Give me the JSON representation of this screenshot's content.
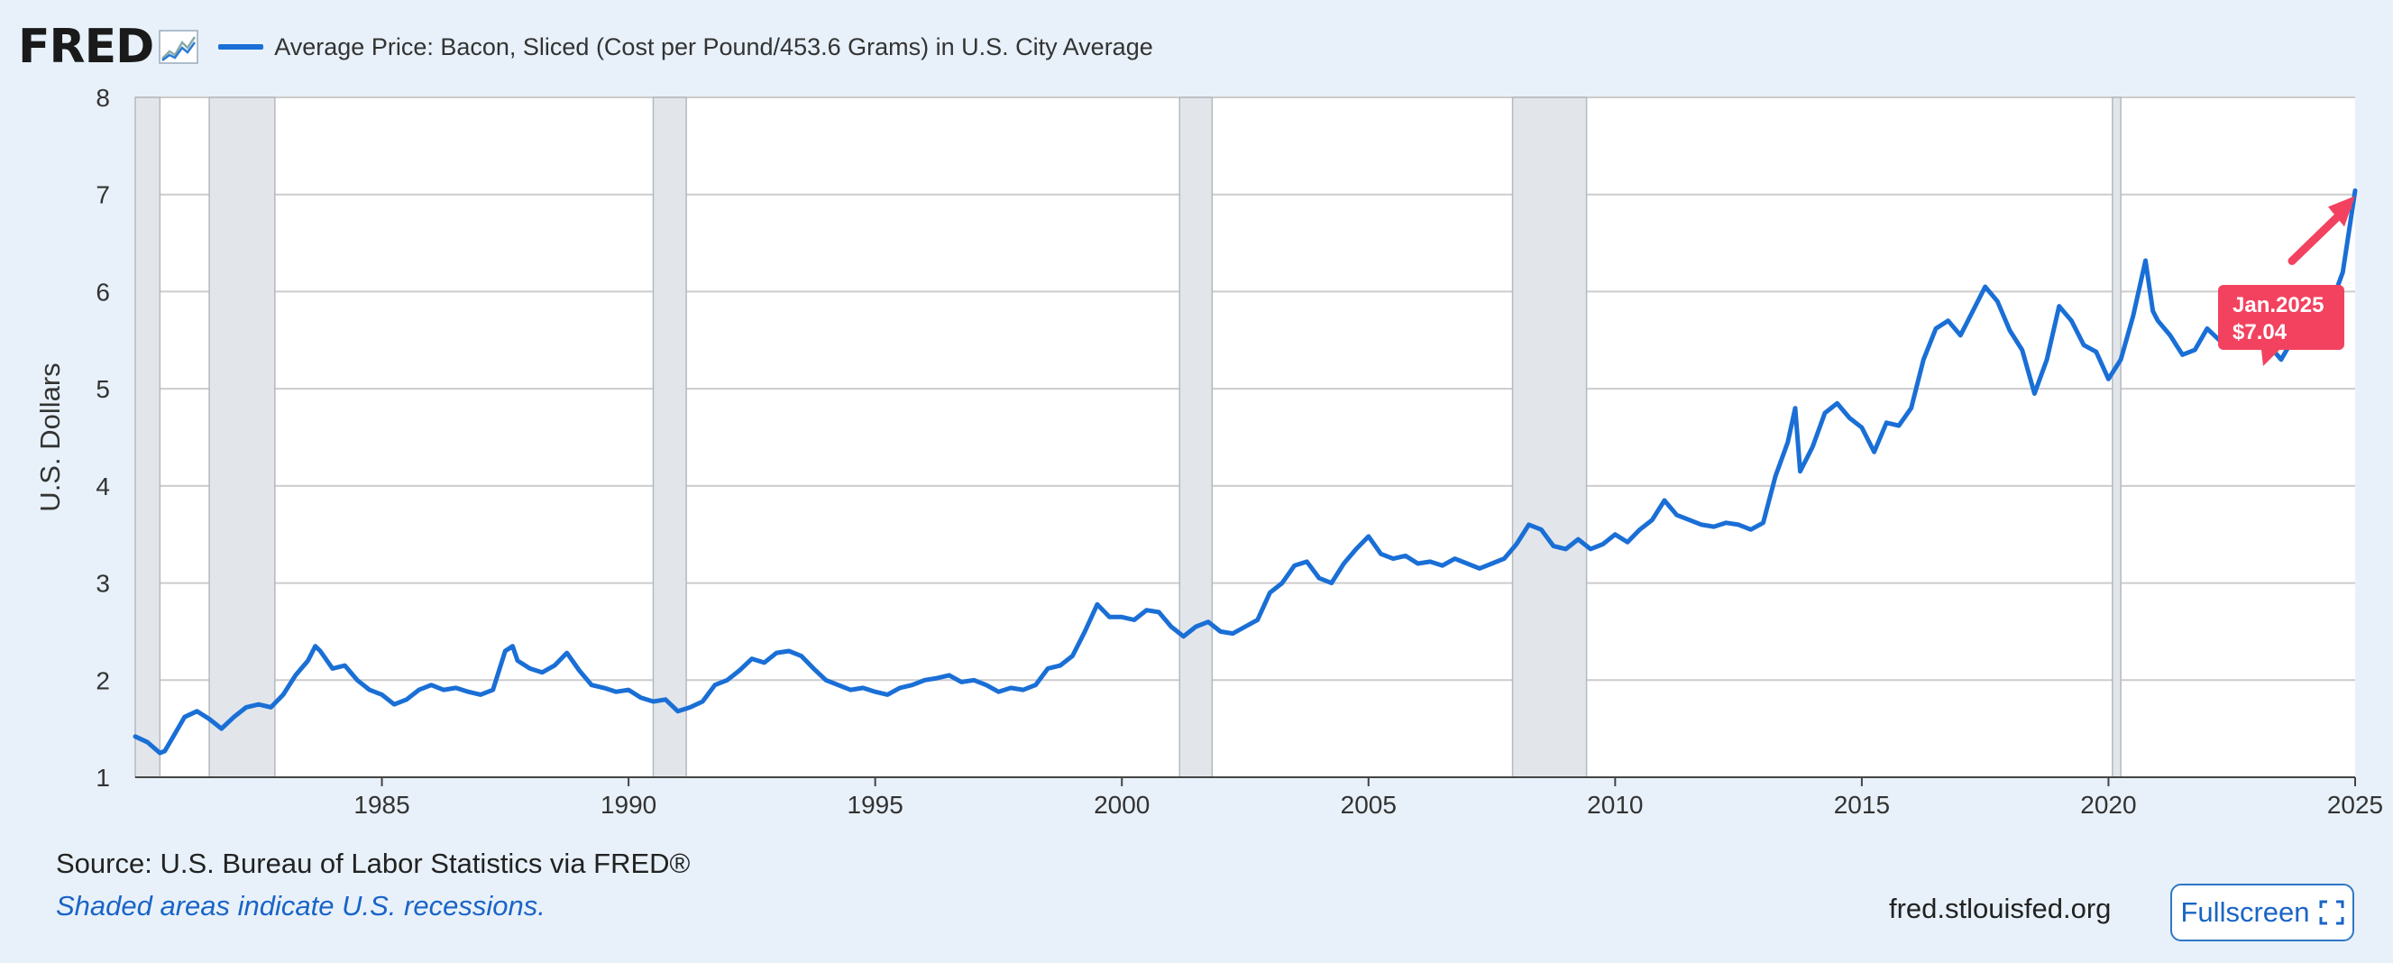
{
  "header": {
    "logo_text": "FRED",
    "legend_label": "Average Price: Bacon, Sliced (Cost per Pound/453.6 Grams) in U.S. City Average"
  },
  "footer": {
    "source": "Source: U.S. Bureau of Labor Statistics via FRED®",
    "note": "Shaded areas indicate U.S. recessions.",
    "url": "fred.stlouisfed.org",
    "fullscreen_label": "Fullscreen"
  },
  "icons": {
    "logo": "trend-chart-icon",
    "fullscreen": "expand-icon"
  },
  "colors": {
    "series": "#1a6fd6",
    "recession": "#e2e6ea",
    "tooltip": "#f2425f",
    "grid": "#cccccc",
    "background": "#e8f1fa"
  },
  "chart_data": {
    "type": "line",
    "ylabel": "U.S. Dollars",
    "xlabel": "",
    "ylim": [
      1,
      8
    ],
    "xlim": [
      1980.0,
      2025.0
    ],
    "y_ticks": [
      1,
      2,
      3,
      4,
      5,
      6,
      7,
      8
    ],
    "x_ticks": [
      1985,
      1990,
      1995,
      2000,
      2005,
      2010,
      2015,
      2020,
      2025
    ],
    "grid": true,
    "recessions": [
      [
        1980.0,
        1980.5
      ],
      [
        1981.5,
        1982.83
      ],
      [
        1990.5,
        1991.17
      ],
      [
        2001.17,
        2001.83
      ],
      [
        2007.92,
        2009.42
      ],
      [
        2020.08,
        2020.25
      ]
    ],
    "tooltip": {
      "date": "Jan.2025",
      "value": "$7.04"
    },
    "series": [
      {
        "name": "Average Price: Bacon, Sliced (Cost per Pound/453.6 Grams) in U.S. City Average",
        "points": [
          [
            1980.0,
            1.42
          ],
          [
            1980.25,
            1.36
          ],
          [
            1980.5,
            1.25
          ],
          [
            1980.6,
            1.27
          ],
          [
            1980.75,
            1.4
          ],
          [
            1981.0,
            1.62
          ],
          [
            1981.25,
            1.68
          ],
          [
            1981.5,
            1.6
          ],
          [
            1981.75,
            1.5
          ],
          [
            1982.0,
            1.62
          ],
          [
            1982.25,
            1.72
          ],
          [
            1982.5,
            1.75
          ],
          [
            1982.75,
            1.72
          ],
          [
            1983.0,
            1.85
          ],
          [
            1983.25,
            2.05
          ],
          [
            1983.5,
            2.2
          ],
          [
            1983.65,
            2.35
          ],
          [
            1983.75,
            2.3
          ],
          [
            1984.0,
            2.12
          ],
          [
            1984.25,
            2.15
          ],
          [
            1984.5,
            2.0
          ],
          [
            1984.75,
            1.9
          ],
          [
            1985.0,
            1.85
          ],
          [
            1985.25,
            1.75
          ],
          [
            1985.5,
            1.8
          ],
          [
            1985.75,
            1.9
          ],
          [
            1986.0,
            1.95
          ],
          [
            1986.25,
            1.9
          ],
          [
            1986.5,
            1.92
          ],
          [
            1986.75,
            1.88
          ],
          [
            1987.0,
            1.85
          ],
          [
            1987.25,
            1.9
          ],
          [
            1987.5,
            2.3
          ],
          [
            1987.65,
            2.35
          ],
          [
            1987.75,
            2.2
          ],
          [
            1988.0,
            2.12
          ],
          [
            1988.25,
            2.08
          ],
          [
            1988.5,
            2.15
          ],
          [
            1988.75,
            2.28
          ],
          [
            1989.0,
            2.1
          ],
          [
            1989.25,
            1.95
          ],
          [
            1989.5,
            1.92
          ],
          [
            1989.75,
            1.88
          ],
          [
            1990.0,
            1.9
          ],
          [
            1990.25,
            1.82
          ],
          [
            1990.5,
            1.78
          ],
          [
            1990.75,
            1.8
          ],
          [
            1991.0,
            1.68
          ],
          [
            1991.25,
            1.72
          ],
          [
            1991.5,
            1.78
          ],
          [
            1991.75,
            1.95
          ],
          [
            1992.0,
            2.0
          ],
          [
            1992.25,
            2.1
          ],
          [
            1992.5,
            2.22
          ],
          [
            1992.75,
            2.18
          ],
          [
            1993.0,
            2.28
          ],
          [
            1993.25,
            2.3
          ],
          [
            1993.5,
            2.25
          ],
          [
            1993.75,
            2.12
          ],
          [
            1994.0,
            2.0
          ],
          [
            1994.25,
            1.95
          ],
          [
            1994.5,
            1.9
          ],
          [
            1994.75,
            1.92
          ],
          [
            1995.0,
            1.88
          ],
          [
            1995.25,
            1.85
          ],
          [
            1995.5,
            1.92
          ],
          [
            1995.75,
            1.95
          ],
          [
            1996.0,
            2.0
          ],
          [
            1996.25,
            2.02
          ],
          [
            1996.5,
            2.05
          ],
          [
            1996.75,
            1.98
          ],
          [
            1997.0,
            2.0
          ],
          [
            1997.25,
            1.95
          ],
          [
            1997.5,
            1.88
          ],
          [
            1997.75,
            1.92
          ],
          [
            1998.0,
            1.9
          ],
          [
            1998.25,
            1.95
          ],
          [
            1998.5,
            2.12
          ],
          [
            1998.75,
            2.15
          ],
          [
            1999.0,
            2.25
          ],
          [
            1999.25,
            2.5
          ],
          [
            1999.5,
            2.78
          ],
          [
            1999.75,
            2.65
          ],
          [
            2000.0,
            2.65
          ],
          [
            2000.25,
            2.62
          ],
          [
            2000.5,
            2.72
          ],
          [
            2000.75,
            2.7
          ],
          [
            2001.0,
            2.55
          ],
          [
            2001.25,
            2.45
          ],
          [
            2001.5,
            2.55
          ],
          [
            2001.75,
            2.6
          ],
          [
            2002.0,
            2.5
          ],
          [
            2002.25,
            2.48
          ],
          [
            2002.5,
            2.55
          ],
          [
            2002.75,
            2.62
          ],
          [
            2003.0,
            2.9
          ],
          [
            2003.25,
            3.0
          ],
          [
            2003.5,
            3.18
          ],
          [
            2003.75,
            3.22
          ],
          [
            2004.0,
            3.05
          ],
          [
            2004.25,
            3.0
          ],
          [
            2004.5,
            3.2
          ],
          [
            2004.75,
            3.35
          ],
          [
            2005.0,
            3.48
          ],
          [
            2005.25,
            3.3
          ],
          [
            2005.5,
            3.25
          ],
          [
            2005.75,
            3.28
          ],
          [
            2006.0,
            3.2
          ],
          [
            2006.25,
            3.22
          ],
          [
            2006.5,
            3.18
          ],
          [
            2006.75,
            3.25
          ],
          [
            2007.0,
            3.2
          ],
          [
            2007.25,
            3.15
          ],
          [
            2007.5,
            3.2
          ],
          [
            2007.75,
            3.25
          ],
          [
            2008.0,
            3.4
          ],
          [
            2008.25,
            3.6
          ],
          [
            2008.5,
            3.55
          ],
          [
            2008.75,
            3.38
          ],
          [
            2009.0,
            3.35
          ],
          [
            2009.25,
            3.45
          ],
          [
            2009.5,
            3.35
          ],
          [
            2009.75,
            3.4
          ],
          [
            2010.0,
            3.5
          ],
          [
            2010.25,
            3.42
          ],
          [
            2010.5,
            3.55
          ],
          [
            2010.75,
            3.65
          ],
          [
            2011.0,
            3.85
          ],
          [
            2011.25,
            3.7
          ],
          [
            2011.5,
            3.65
          ],
          [
            2011.75,
            3.6
          ],
          [
            2012.0,
            3.58
          ],
          [
            2012.25,
            3.62
          ],
          [
            2012.5,
            3.6
          ],
          [
            2012.75,
            3.55
          ],
          [
            2013.0,
            3.62
          ],
          [
            2013.25,
            4.1
          ],
          [
            2013.5,
            4.45
          ],
          [
            2013.65,
            4.8
          ],
          [
            2013.75,
            4.15
          ],
          [
            2014.0,
            4.4
          ],
          [
            2014.25,
            4.75
          ],
          [
            2014.5,
            4.85
          ],
          [
            2014.75,
            4.7
          ],
          [
            2015.0,
            4.6
          ],
          [
            2015.25,
            4.35
          ],
          [
            2015.5,
            4.65
          ],
          [
            2015.75,
            4.62
          ],
          [
            2016.0,
            4.8
          ],
          [
            2016.25,
            5.3
          ],
          [
            2016.5,
            5.62
          ],
          [
            2016.75,
            5.7
          ],
          [
            2017.0,
            5.55
          ],
          [
            2017.25,
            5.8
          ],
          [
            2017.5,
            6.05
          ],
          [
            2017.75,
            5.9
          ],
          [
            2018.0,
            5.6
          ],
          [
            2018.25,
            5.4
          ],
          [
            2018.5,
            4.95
          ],
          [
            2018.75,
            5.3
          ],
          [
            2019.0,
            5.85
          ],
          [
            2019.25,
            5.7
          ],
          [
            2019.5,
            5.45
          ],
          [
            2019.75,
            5.38
          ],
          [
            2020.0,
            5.1
          ],
          [
            2020.25,
            5.3
          ],
          [
            2020.5,
            5.75
          ],
          [
            2020.75,
            6.32
          ],
          [
            2020.9,
            5.8
          ],
          [
            2021.0,
            5.7
          ],
          [
            2021.25,
            5.55
          ],
          [
            2021.5,
            5.35
          ],
          [
            2021.75,
            5.4
          ],
          [
            2022.0,
            5.62
          ],
          [
            2022.25,
            5.5
          ],
          [
            2022.5,
            5.55
          ],
          [
            2022.75,
            5.88
          ],
          [
            2023.0,
            5.55
          ],
          [
            2023.25,
            5.45
          ],
          [
            2023.5,
            5.3
          ],
          [
            2023.75,
            5.52
          ],
          [
            2024.0,
            5.8
          ],
          [
            2024.25,
            5.75
          ],
          [
            2024.5,
            5.85
          ],
          [
            2024.75,
            6.2
          ],
          [
            2025.0,
            7.04
          ]
        ]
      }
    ]
  }
}
